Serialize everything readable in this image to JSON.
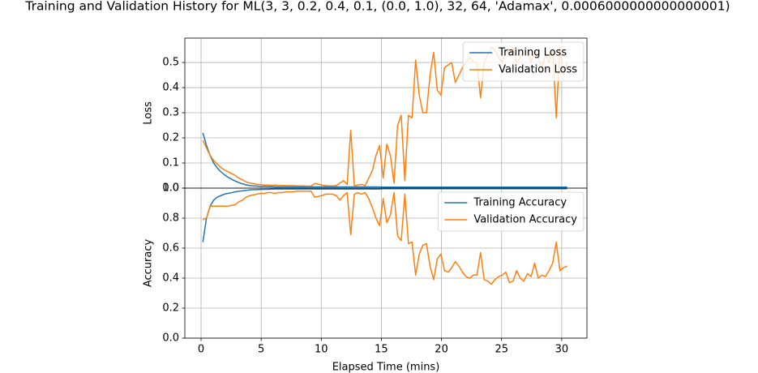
{
  "chart_data": [
    {
      "type": "line",
      "title": "Training and Validation History for ML(3, 3, 0.2, 0.4, 0.1, (0.0, 1.0), 32, 64, 'Adamax', 0.0006000000000000001)",
      "y_label": "Loss",
      "x": [
        0.15,
        0.45,
        0.75,
        1.05,
        1.35,
        1.65,
        1.95,
        2.25,
        2.55,
        2.85,
        3.15,
        3.45,
        3.75,
        4.05,
        4.35,
        4.65,
        4.95,
        5.25,
        5.55,
        5.85,
        6.15,
        6.45,
        6.75,
        7.05,
        7.35,
        7.65,
        7.95,
        8.25,
        8.55,
        8.85,
        9.15,
        9.45,
        9.75,
        10.05,
        10.35,
        10.65,
        10.95,
        11.25,
        11.55,
        11.85,
        12.15,
        12.45,
        12.75,
        13.05,
        13.35,
        13.65,
        13.95,
        14.25,
        14.55,
        14.85,
        15.15,
        15.45,
        15.75,
        16.05,
        16.35,
        16.65,
        16.95,
        17.25,
        17.55,
        17.85,
        18.15,
        18.45,
        18.75,
        19.05,
        19.35,
        19.65,
        19.95,
        20.25,
        20.55,
        20.85,
        21.15,
        21.45,
        21.75,
        22.05,
        22.35,
        22.65,
        22.95,
        23.25,
        23.55,
        23.85,
        24.15,
        24.45,
        24.75,
        25.05,
        25.35,
        25.65,
        25.95,
        26.25,
        26.55,
        26.85,
        27.15,
        27.45,
        27.75,
        28.05,
        28.35,
        28.65,
        28.95,
        29.25,
        29.55,
        29.85,
        30.15,
        30.45
      ],
      "series": [
        {
          "name": "Training Loss",
          "color": "#1f77b4",
          "values": [
            0.22,
            0.17,
            0.13,
            0.1,
            0.08,
            0.065,
            0.053,
            0.043,
            0.035,
            0.028,
            0.022,
            0.017,
            0.013,
            0.01,
            0.009,
            0.008,
            0.007,
            0.007,
            0.006,
            0.006,
            0.005,
            0.005,
            0.005,
            0.005,
            0.005,
            0.005,
            0.005,
            0.005,
            0.005,
            0.005,
            0.005,
            0.005,
            0.005,
            0.005,
            0.005,
            0.005,
            0.005,
            0.005,
            0.005,
            0.005,
            0.005,
            0.005,
            0.005,
            0.005,
            0.005,
            0.005,
            0.005,
            0.005,
            0.005,
            0.005,
            0.004,
            0.004,
            0.004,
            0.004,
            0.004,
            0.004,
            0.004,
            0.004,
            0.004,
            0.004,
            0.004,
            0.004,
            0.004,
            0.004,
            0.004,
            0.004,
            0.004,
            0.004,
            0.004,
            0.004,
            0.004,
            0.004,
            0.004,
            0.004,
            0.004,
            0.004,
            0.004,
            0.004,
            0.004,
            0.004,
            0.004,
            0.004,
            0.004,
            0.004,
            0.004,
            0.004,
            0.004,
            0.004,
            0.004,
            0.004,
            0.004,
            0.004,
            0.004,
            0.004,
            0.004,
            0.004,
            0.004,
            0.004,
            0.004,
            0.004,
            0.004,
            0.004
          ]
        },
        {
          "name": "Validation Loss",
          "color": "#ff7f0e",
          "values": [
            0.19,
            0.16,
            0.13,
            0.11,
            0.095,
            0.082,
            0.072,
            0.065,
            0.058,
            0.05,
            0.04,
            0.033,
            0.025,
            0.02,
            0.018,
            0.015,
            0.014,
            0.012,
            0.012,
            0.011,
            0.012,
            0.011,
            0.011,
            0.01,
            0.01,
            0.01,
            0.009,
            0.009,
            0.009,
            0.008,
            0.008,
            0.018,
            0.016,
            0.012,
            0.01,
            0.009,
            0.009,
            0.01,
            0.02,
            0.03,
            0.015,
            0.23,
            0.01,
            0.012,
            0.015,
            0.01,
            0.04,
            0.07,
            0.13,
            0.17,
            0.04,
            0.175,
            0.13,
            0.02,
            0.25,
            0.29,
            0.03,
            0.29,
            0.28,
            0.51,
            0.37,
            0.3,
            0.3,
            0.45,
            0.54,
            0.39,
            0.37,
            0.48,
            0.49,
            0.5,
            0.42,
            0.45,
            0.48,
            0.5,
            0.52,
            0.5,
            0.5,
            0.36,
            0.5,
            0.53,
            0.56,
            0.55,
            0.52,
            0.5,
            0.55,
            0.53,
            0.56,
            0.5,
            0.52,
            0.55,
            0.54,
            0.5,
            0.55,
            0.52,
            0.48,
            0.53,
            0.5,
            0.55,
            0.28,
            0.56,
            0.45,
            0.5
          ]
        }
      ],
      "xlim": [
        -1.35,
        32.1
      ],
      "ylim": [
        0,
        0.597
      ],
      "yticks": [
        {
          "value": 0,
          "label": "0.0"
        },
        0.1,
        0.2,
        0.3,
        0.4,
        0.5
      ],
      "grid": true,
      "legend": "upper right"
    },
    {
      "type": "line",
      "x_label": "Elapsed Time (mins)",
      "y_label": "Accuracy",
      "x": [
        0.15,
        0.45,
        0.75,
        1.05,
        1.35,
        1.65,
        1.95,
        2.25,
        2.55,
        2.85,
        3.15,
        3.45,
        3.75,
        4.05,
        4.35,
        4.65,
        4.95,
        5.25,
        5.55,
        5.85,
        6.15,
        6.45,
        6.75,
        7.05,
        7.35,
        7.65,
        7.95,
        8.25,
        8.55,
        8.85,
        9.15,
        9.45,
        9.75,
        10.05,
        10.35,
        10.65,
        10.95,
        11.25,
        11.55,
        11.85,
        12.15,
        12.45,
        12.75,
        13.05,
        13.35,
        13.65,
        13.95,
        14.25,
        14.55,
        14.85,
        15.15,
        15.45,
        15.75,
        16.05,
        16.35,
        16.65,
        16.95,
        17.25,
        17.55,
        17.85,
        18.15,
        18.45,
        18.75,
        19.05,
        19.35,
        19.65,
        19.95,
        20.25,
        20.55,
        20.85,
        21.15,
        21.45,
        21.75,
        22.05,
        22.35,
        22.65,
        22.95,
        23.25,
        23.55,
        23.85,
        24.15,
        24.45,
        24.75,
        25.05,
        25.35,
        25.65,
        25.95,
        26.25,
        26.55,
        26.85,
        27.15,
        27.45,
        27.75,
        28.05,
        28.35,
        28.65,
        28.95,
        29.25,
        29.55,
        29.85,
        30.15,
        30.45
      ],
      "series": [
        {
          "name": "Training Accuracy",
          "color": "#1f77b4",
          "values": [
            0.64,
            0.8,
            0.88,
            0.92,
            0.94,
            0.95,
            0.96,
            0.965,
            0.97,
            0.975,
            0.98,
            0.982,
            0.985,
            0.988,
            0.99,
            0.99,
            0.991,
            0.992,
            0.992,
            0.993,
            0.994,
            0.994,
            0.994,
            0.994,
            0.994,
            0.994,
            0.994,
            0.994,
            0.994,
            0.994,
            0.994,
            0.994,
            0.994,
            0.994,
            0.994,
            0.994,
            0.994,
            0.994,
            0.994,
            0.994,
            0.994,
            0.994,
            0.994,
            0.994,
            0.994,
            0.994,
            0.994,
            0.994,
            0.994,
            0.994,
            0.996,
            0.996,
            0.996,
            0.996,
            0.996,
            0.996,
            0.996,
            0.996,
            0.996,
            0.996,
            0.996,
            0.996,
            0.996,
            0.996,
            0.996,
            0.996,
            0.996,
            0.996,
            0.996,
            0.996,
            0.996,
            0.996,
            0.996,
            0.996,
            0.996,
            0.996,
            0.996,
            0.996,
            0.996,
            0.996,
            0.996,
            0.996,
            0.996,
            0.996,
            0.996,
            0.996,
            0.996,
            0.996,
            0.996,
            0.996,
            0.996,
            0.996,
            0.996,
            0.996,
            0.996,
            0.996,
            0.996,
            0.996,
            0.996,
            0.996,
            0.996,
            0.996
          ]
        },
        {
          "name": "Validation Accuracy",
          "color": "#ff7f0e",
          "values": [
            0.79,
            0.8,
            0.88,
            0.88,
            0.88,
            0.88,
            0.88,
            0.88,
            0.885,
            0.89,
            0.91,
            0.92,
            0.94,
            0.95,
            0.955,
            0.96,
            0.965,
            0.965,
            0.97,
            0.97,
            0.965,
            0.97,
            0.97,
            0.975,
            0.975,
            0.975,
            0.98,
            0.98,
            0.98,
            0.98,
            0.98,
            0.94,
            0.945,
            0.95,
            0.96,
            0.96,
            0.96,
            0.95,
            0.92,
            0.95,
            0.97,
            0.69,
            0.96,
            0.97,
            0.96,
            0.97,
            0.93,
            0.87,
            0.8,
            0.75,
            0.93,
            0.77,
            0.82,
            0.97,
            0.68,
            0.65,
            0.96,
            0.63,
            0.64,
            0.42,
            0.56,
            0.62,
            0.63,
            0.48,
            0.39,
            0.53,
            0.56,
            0.45,
            0.44,
            0.47,
            0.51,
            0.48,
            0.44,
            0.41,
            0.4,
            0.42,
            0.42,
            0.57,
            0.39,
            0.38,
            0.36,
            0.39,
            0.41,
            0.42,
            0.44,
            0.37,
            0.38,
            0.45,
            0.4,
            0.38,
            0.43,
            0.41,
            0.5,
            0.4,
            0.42,
            0.41,
            0.45,
            0.5,
            0.64,
            0.45,
            0.47,
            0.48
          ]
        }
      ],
      "xlim": [
        -1.35,
        32.1
      ],
      "xticks": [
        0,
        5,
        10,
        15,
        20,
        25,
        30
      ],
      "ylim": [
        0,
        1
      ],
      "yticks": [
        {
          "value": 0,
          "label": "0.0"
        },
        0.2,
        0.4,
        0.6,
        0.8,
        {
          "value": 1,
          "label": "1.0"
        }
      ],
      "grid": true,
      "legend": "upper right"
    }
  ]
}
